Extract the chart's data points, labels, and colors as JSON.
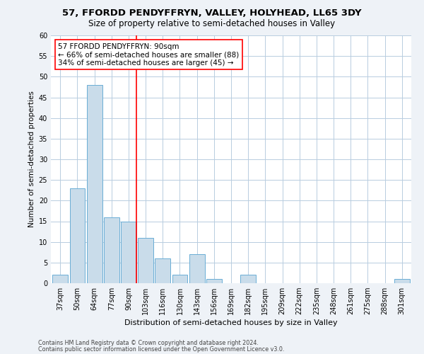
{
  "title1": "57, FFORDD PENDYFFRYN, VALLEY, HOLYHEAD, LL65 3DY",
  "title2": "Size of property relative to semi-detached houses in Valley",
  "xlabel": "Distribution of semi-detached houses by size in Valley",
  "ylabel": "Number of semi-detached properties",
  "categories": [
    "37sqm",
    "50sqm",
    "64sqm",
    "77sqm",
    "90sqm",
    "103sqm",
    "116sqm",
    "130sqm",
    "143sqm",
    "156sqm",
    "169sqm",
    "182sqm",
    "195sqm",
    "209sqm",
    "222sqm",
    "235sqm",
    "248sqm",
    "261sqm",
    "275sqm",
    "288sqm",
    "301sqm"
  ],
  "values": [
    2,
    23,
    48,
    16,
    15,
    11,
    6,
    2,
    7,
    1,
    0,
    2,
    0,
    0,
    0,
    0,
    0,
    0,
    0,
    0,
    1
  ],
  "bar_color": "#c9dcea",
  "bar_edge_color": "#6aaed6",
  "annotation_text": "57 FFORDD PENDYFFRYN: 90sqm\n← 66% of semi-detached houses are smaller (88)\n34% of semi-detached houses are larger (45) →",
  "annotation_box_color": "white",
  "annotation_box_edge_color": "red",
  "vline_color": "red",
  "ylim": [
    0,
    60
  ],
  "yticks": [
    0,
    5,
    10,
    15,
    20,
    25,
    30,
    35,
    40,
    45,
    50,
    55,
    60
  ],
  "footer1": "Contains HM Land Registry data © Crown copyright and database right 2024.",
  "footer2": "Contains public sector information licensed under the Open Government Licence v3.0.",
  "background_color": "#eef2f7",
  "plot_bg_color": "white",
  "grid_color": "#b8cde0",
  "title1_fontsize": 9.5,
  "title2_fontsize": 8.5,
  "xlabel_fontsize": 8,
  "ylabel_fontsize": 7.5,
  "tick_fontsize": 7,
  "annotation_fontsize": 7.5,
  "footer_fontsize": 5.8
}
